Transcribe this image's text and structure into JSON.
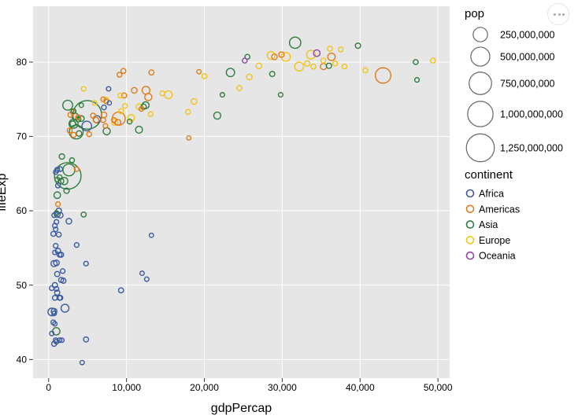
{
  "chart_data": {
    "type": "scatter",
    "title": "",
    "xlabel": "gdpPercap",
    "ylabel": "lifeExp",
    "xlim": [
      -2000,
      51500
    ],
    "ylim": [
      37.5,
      87.5
    ],
    "x_ticks": [
      0,
      10000,
      20000,
      30000,
      40000,
      50000
    ],
    "x_tick_labels": [
      "0",
      "10,000",
      "20,000",
      "30,000",
      "40,000",
      "50,000"
    ],
    "y_ticks": [
      40,
      50,
      60,
      70,
      80
    ],
    "y_tick_labels": [
      "40",
      "50",
      "60",
      "70",
      "80"
    ],
    "grid": true,
    "background": "#e6e6e6",
    "size_legend": {
      "title": "pop",
      "entries": [
        {
          "value": 250000000,
          "label": "250,000,000"
        },
        {
          "value": 500000000,
          "label": "500,000,000"
        },
        {
          "value": 750000000,
          "label": "750,000,000"
        },
        {
          "value": 1000000000,
          "label": "1,000,000,000"
        },
        {
          "value": 1250000000,
          "label": "1,250,000,000"
        }
      ]
    },
    "color_legend": {
      "title": "continent",
      "entries": [
        {
          "label": "Africa",
          "color": "#3a5aa0"
        },
        {
          "label": "Americas",
          "color": "#e07b1a"
        },
        {
          "label": "Asia",
          "color": "#2e7d3e"
        },
        {
          "label": "Europe",
          "color": "#f0c419"
        },
        {
          "label": "Oceania",
          "color": "#9043a8"
        }
      ]
    },
    "legend_position": "right",
    "series": [
      {
        "name": "Africa",
        "color": "#3a5aa0",
        "points": [
          [
            6200,
            72.3,
            30000000
          ],
          [
            4900,
            71.4,
            80000000
          ],
          [
            12000,
            51.6,
            1500000
          ],
          [
            12600,
            50.8,
            2000000
          ],
          [
            13200,
            56.7,
            1500000
          ],
          [
            9300,
            49.3,
            5000000
          ],
          [
            7100,
            73.9,
            3000000
          ],
          [
            7800,
            74.5,
            1000000
          ],
          [
            7700,
            76.4,
            2000000
          ],
          [
            4800,
            42.7,
            5000000
          ],
          [
            4300,
            39.6,
            1500000
          ],
          [
            3600,
            55.4,
            3000000
          ],
          [
            4800,
            52.9,
            2500000
          ],
          [
            2600,
            58.6,
            10000000
          ],
          [
            2100,
            46.9,
            40000000
          ],
          [
            1600,
            50.7,
            5000000
          ],
          [
            1900,
            50.6,
            5000000
          ],
          [
            1500,
            48.3,
            4000000
          ],
          [
            1100,
            59.5,
            10000000
          ],
          [
            1200,
            54.6,
            7000000
          ],
          [
            1400,
            54.1,
            4000000
          ],
          [
            900,
            55.3,
            3000000
          ],
          [
            1000,
            53.0,
            10000000
          ],
          [
            700,
            52.9,
            15000000
          ],
          [
            1100,
            51.5,
            6000000
          ],
          [
            1300,
            60.0,
            8000000
          ],
          [
            1500,
            59.4,
            8000000
          ],
          [
            800,
            58.0,
            3000000
          ],
          [
            1000,
            58.5,
            3000000
          ],
          [
            700,
            59.4,
            2000000
          ],
          [
            900,
            65.2,
            2000000
          ],
          [
            1100,
            65.5,
            5000000
          ],
          [
            1500,
            65.6,
            3000000
          ],
          [
            1200,
            63.4,
            4000000
          ],
          [
            600,
            56.9,
            4000000
          ],
          [
            800,
            54.4,
            2000000
          ],
          [
            1300,
            56.8,
            4000000
          ],
          [
            1100,
            49.0,
            6000000
          ],
          [
            800,
            50.0,
            6000000
          ],
          [
            400,
            49.6,
            3000000
          ],
          [
            400,
            46.4,
            35000000
          ],
          [
            700,
            46.5,
            10000000
          ],
          [
            800,
            48.3,
            4000000
          ],
          [
            600,
            45.0,
            3000000
          ],
          [
            800,
            44.8,
            2000000
          ],
          [
            400,
            43.5,
            2000000
          ],
          [
            900,
            42.6,
            3000000
          ],
          [
            700,
            42.1,
            4000000
          ],
          [
            1000,
            42.4,
            3000000
          ],
          [
            1400,
            42.6,
            3000000
          ],
          [
            1700,
            42.6,
            2000000
          ],
          [
            1400,
            48.3,
            4000000
          ],
          [
            700,
            46.2,
            3000000
          ],
          [
            1600,
            54.1,
            5000000
          ],
          [
            900,
            57.5,
            2000000
          ],
          [
            1800,
            51.9,
            3000000
          ],
          [
            1000,
            49.5,
            3000000
          ]
        ]
      },
      {
        "name": "Americas",
        "color": "#e07b1a",
        "points": [
          [
            42951,
            78.2,
            301000000
          ],
          [
            36319,
            80.7,
            33000000
          ],
          [
            18000,
            69.8,
            1500000
          ],
          [
            12500,
            76.2,
            40000000
          ],
          [
            11000,
            76.2,
            10000000
          ],
          [
            13200,
            78.6,
            5000000
          ],
          [
            9600,
            78.8,
            4000000
          ],
          [
            9100,
            78.3,
            4000000
          ],
          [
            9700,
            75.5,
            5000000
          ],
          [
            12800,
            75.3,
            28000000
          ],
          [
            9000,
            72.4,
            190000000
          ],
          [
            7000,
            75.0,
            3000000
          ],
          [
            7400,
            74.7,
            3000000
          ],
          [
            7100,
            72.9,
            10000000
          ],
          [
            7000,
            72.2,
            4000000
          ],
          [
            6100,
            72.2,
            9000000
          ],
          [
            5700,
            72.8,
            4000000
          ],
          [
            8900,
            71.9,
            10000000
          ],
          [
            7300,
            71.4,
            3000000
          ],
          [
            8400,
            72.2,
            4000000
          ],
          [
            11900,
            73.7,
            3000000
          ],
          [
            3800,
            72.6,
            5000000
          ],
          [
            3200,
            70.2,
            5000000
          ],
          [
            2700,
            70.8,
            5000000
          ],
          [
            5200,
            70.3,
            4000000
          ],
          [
            2800,
            72.9,
            5000000
          ],
          [
            3100,
            73.3,
            4000000
          ],
          [
            3600,
            65.6,
            3000000
          ],
          [
            1200,
            60.9,
            3000000
          ],
          [
            19300,
            78.7,
            1500000
          ],
          [
            29900,
            81.0,
            8000000
          ],
          [
            35300,
            79.4,
            16000000
          ],
          [
            29000,
            80.7,
            9000000
          ]
        ]
      },
      {
        "name": "Asia",
        "color": "#2e7d3e",
        "points": [
          [
            4959,
            72.9,
            1318000000
          ],
          [
            2452,
            64.7,
            1110000000
          ],
          [
            3541,
            70.6,
            224000000
          ],
          [
            2606,
            65.5,
            150000000
          ],
          [
            2450,
            74.2,
            85000000
          ],
          [
            3200,
            71.7,
            65000000
          ],
          [
            4500,
            59.5,
            5000000
          ],
          [
            7458,
            70.7,
            27000000
          ],
          [
            11606,
            70.9,
            25000000
          ],
          [
            31656,
            82.6,
            127000000
          ],
          [
            23348,
            78.6,
            49000000
          ],
          [
            39725,
            82.2,
            7000000
          ],
          [
            47143,
            80.0,
            4500000
          ],
          [
            47307,
            77.6,
            2500000
          ],
          [
            36000,
            79.5,
            7000000
          ],
          [
            28718,
            78.4,
            6000000
          ],
          [
            29796,
            75.6,
            2500000
          ],
          [
            25523,
            80.7,
            4500000
          ],
          [
            22316,
            75.6,
            2000000
          ],
          [
            21655,
            72.8,
            27000000
          ],
          [
            12452,
            74.2,
            25000000
          ],
          [
            12200,
            74.0,
            7000000
          ],
          [
            10400,
            72.0,
            4000000
          ],
          [
            4200,
            72.4,
            10000000
          ],
          [
            3800,
            72.3,
            6000000
          ],
          [
            3900,
            70.4,
            8000000
          ],
          [
            3100,
            71.7,
            10000000
          ],
          [
            2000,
            64.0,
            30000000
          ],
          [
            1700,
            67.3,
            8000000
          ],
          [
            3000,
            66.8,
            4000000
          ],
          [
            1100,
            62.1,
            20000000
          ],
          [
            2300,
            62.7,
            8000000
          ],
          [
            1600,
            64.0,
            8000000
          ],
          [
            974,
            43.8,
            32000000
          ],
          [
            4200,
            74.2,
            2000000
          ],
          [
            3200,
            73.4,
            3000000
          ],
          [
            1100,
            64.2,
            3000000
          ],
          [
            1400,
            64.5,
            5000000
          ],
          [
            1000,
            59.7,
            3000000
          ],
          [
            3400,
            72.7,
            20000000
          ]
        ]
      },
      {
        "name": "Europe",
        "color": "#f0c419",
        "points": [
          [
            49357,
            80.2,
            4600000
          ],
          [
            40676,
            78.9,
            4000000
          ],
          [
            37506,
            81.7,
            4000000
          ],
          [
            36126,
            81.8,
            5000000
          ],
          [
            38000,
            79.4,
            4000000
          ],
          [
            36800,
            79.8,
            4000000
          ],
          [
            35278,
            80.2,
            4000000
          ],
          [
            34000,
            79.4,
            5000000
          ],
          [
            33203,
            79.8,
            8000000
          ],
          [
            33692,
            81.0,
            58000000
          ],
          [
            32170,
            79.4,
            61000000
          ],
          [
            30470,
            80.7,
            60000000
          ],
          [
            28570,
            80.9,
            40000000
          ],
          [
            27000,
            79.5,
            10000000
          ],
          [
            25768,
            78.0,
            10000000
          ],
          [
            20000,
            78.1,
            5000000
          ],
          [
            18678,
            74.7,
            10000000
          ],
          [
            24500,
            76.5,
            5000000
          ],
          [
            17900,
            73.3,
            4000000
          ],
          [
            15389,
            75.6,
            38000000
          ],
          [
            14600,
            75.8,
            4000000
          ],
          [
            13100,
            73.0,
            3000000
          ],
          [
            11600,
            74.0,
            10000000
          ],
          [
            10600,
            72.5,
            22000000
          ],
          [
            9800,
            74.1,
            3000000
          ],
          [
            9300,
            73.4,
            5000000
          ],
          [
            8500,
            71.9,
            15000000
          ],
          [
            9200,
            75.5,
            4000000
          ],
          [
            7400,
            74.9,
            7000000
          ],
          [
            5900,
            74.5,
            3000000
          ],
          [
            4500,
            76.4,
            3000000
          ]
        ]
      },
      {
        "name": "Oceania",
        "color": "#9043a8",
        "points": [
          [
            34435,
            81.2,
            20000000
          ],
          [
            25185,
            80.2,
            4100000
          ]
        ]
      }
    ]
  },
  "ui": {
    "menu_label": "Chart menu"
  }
}
